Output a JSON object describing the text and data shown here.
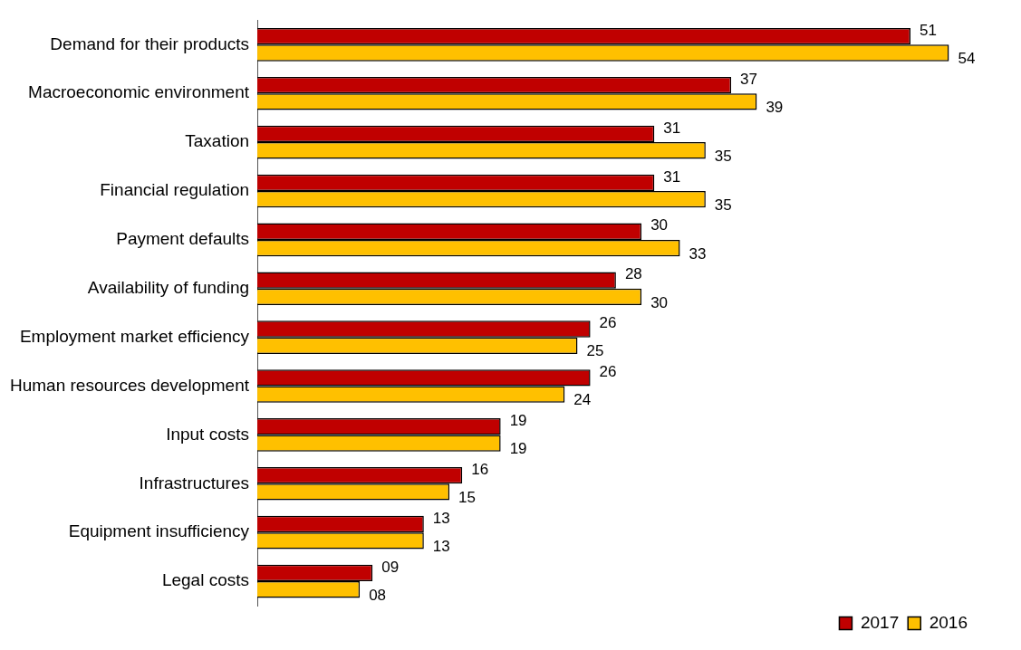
{
  "chart_data": {
    "type": "bar",
    "orientation": "horizontal",
    "categories": [
      "Demand for their products",
      "Macroeconomic environment",
      "Taxation",
      "Financial regulation",
      "Payment defaults",
      "Availability of funding",
      "Employment market efficiency",
      "Human resources development",
      "Input costs",
      "Infrastructures",
      "Equipment insufficiency",
      "Legal costs"
    ],
    "series": [
      {
        "name": "2017",
        "color": "#c00000",
        "values": [
          51,
          37,
          31,
          31,
          30,
          28,
          26,
          26,
          19,
          16,
          13,
          9
        ],
        "value_labels": [
          "51",
          "37",
          "31",
          "31",
          "30",
          "28",
          "26",
          "26",
          "19",
          "16",
          "13",
          "09"
        ]
      },
      {
        "name": "2016",
        "color": "#ffc000",
        "values": [
          54,
          39,
          35,
          35,
          33,
          30,
          25,
          24,
          19,
          15,
          13,
          8
        ],
        "value_labels": [
          "54",
          "39",
          "35",
          "35",
          "33",
          "30",
          "25",
          "24",
          "19",
          "15",
          "13",
          "08"
        ]
      }
    ],
    "legend": "bottom right"
  }
}
